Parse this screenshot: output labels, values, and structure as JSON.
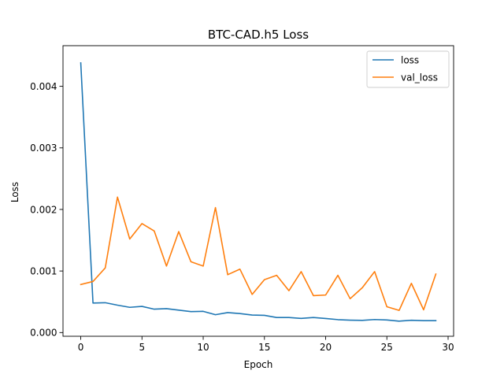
{
  "chart_data": {
    "type": "line",
    "title": "BTC-CAD.h5 Loss",
    "xlabel": "Epoch",
    "ylabel": "Loss",
    "xlim": [
      -1.45,
      30.45
    ],
    "ylim": [
      -6e-05,
      0.00466
    ],
    "xticks": [
      0,
      5,
      10,
      15,
      20,
      25,
      30
    ],
    "yticks": [
      0.0,
      0.001,
      0.002,
      0.003,
      0.004
    ],
    "xtick_labels": [
      "0",
      "5",
      "10",
      "15",
      "20",
      "25",
      "30"
    ],
    "ytick_labels": [
      "0.000",
      "0.001",
      "0.002",
      "0.003",
      "0.004"
    ],
    "grid": false,
    "legend": "top-right",
    "x": [
      0,
      1,
      2,
      3,
      4,
      5,
      6,
      7,
      8,
      9,
      10,
      11,
      12,
      13,
      14,
      15,
      16,
      17,
      18,
      19,
      20,
      21,
      22,
      23,
      24,
      25,
      26,
      27,
      28,
      29
    ],
    "series": [
      {
        "name": "loss",
        "color": "#1f77b4",
        "values": [
          0.00438,
          0.00048,
          0.000485,
          0.000445,
          0.00041,
          0.000425,
          0.00038,
          0.000388,
          0.000365,
          0.00034,
          0.000345,
          0.00029,
          0.000325,
          0.000308,
          0.000285,
          0.00028,
          0.000245,
          0.000245,
          0.00023,
          0.000245,
          0.000228,
          0.00021,
          0.000202,
          0.000198,
          0.000212,
          0.000205,
          0.000186,
          0.0002,
          0.000193,
          0.000193
        ]
      },
      {
        "name": "val_loss",
        "color": "#ff7f0e",
        "values": [
          0.00078,
          0.00083,
          0.00105,
          0.0022,
          0.00152,
          0.00177,
          0.00165,
          0.00108,
          0.00164,
          0.00115,
          0.00108,
          0.00203,
          0.00094,
          0.00103,
          0.00062,
          0.00086,
          0.00093,
          0.00068,
          0.00099,
          0.0006,
          0.00061,
          0.00093,
          0.00055,
          0.00073,
          0.00099,
          0.00042,
          0.00036,
          0.0008,
          0.00037,
          0.00095
        ]
      }
    ]
  }
}
